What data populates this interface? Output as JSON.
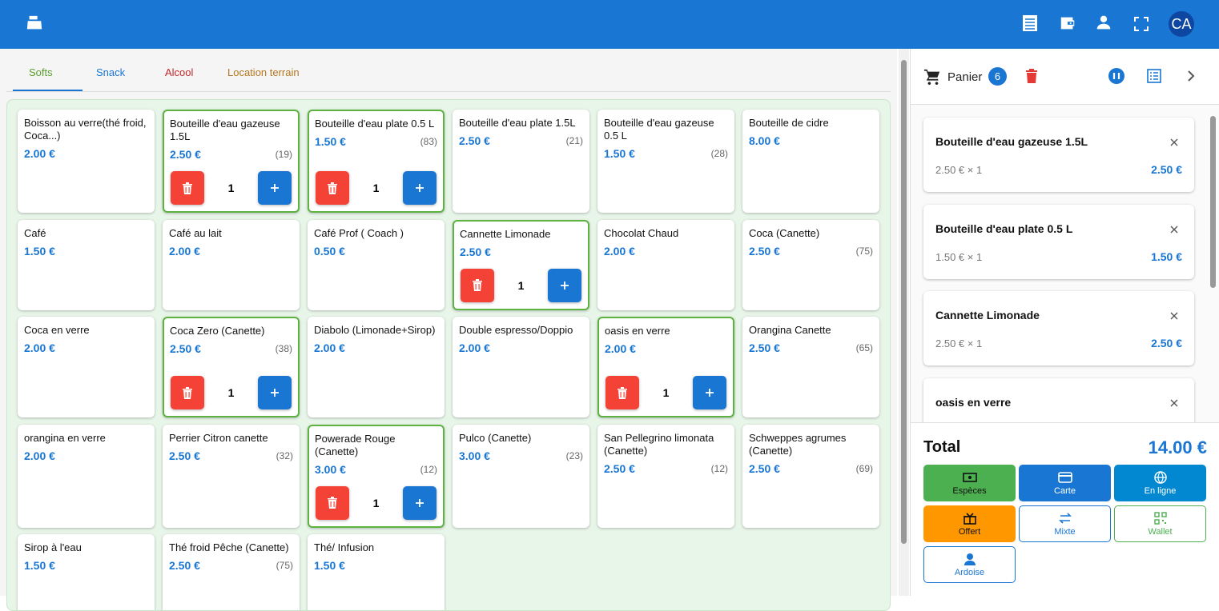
{
  "header": {
    "avatar": "CA"
  },
  "tabs": [
    "Softs",
    "Snack",
    "Alcool",
    "Location terrain"
  ],
  "products": [
    {
      "name": "Boisson au verre(thé froid, Coca...)",
      "price": "2.00 €"
    },
    {
      "name": "Bouteille d'eau gazeuse 1.5L",
      "price": "2.50 €",
      "stock": "(19)",
      "qty": 1
    },
    {
      "name": "Bouteille d'eau plate 0.5 L",
      "price": "1.50 €",
      "stock": "(83)",
      "qty": 1
    },
    {
      "name": "Bouteille d'eau plate 1.5L",
      "price": "2.50 €",
      "stock": "(21)"
    },
    {
      "name": "Bouteille d'eau gazeuse 0.5 L",
      "price": "1.50 €",
      "stock": "(28)"
    },
    {
      "name": "Bouteille de cidre",
      "price": "8.00 €"
    },
    {
      "name": "Café",
      "price": "1.50 €"
    },
    {
      "name": "Café au lait",
      "price": "2.00 €"
    },
    {
      "name": "Café Prof ( Coach )",
      "price": "0.50 €"
    },
    {
      "name": "Cannette Limonade",
      "price": "2.50 €",
      "qty": 1
    },
    {
      "name": "Chocolat Chaud",
      "price": "2.00 €"
    },
    {
      "name": "Coca (Canette)",
      "price": "2.50 €",
      "stock": "(75)"
    },
    {
      "name": "Coca en verre",
      "price": "2.00 €"
    },
    {
      "name": "Coca Zero (Canette)",
      "price": "2.50 €",
      "stock": "(38)",
      "qty": 1
    },
    {
      "name": "Diabolo (Limonade+Sirop)",
      "price": "2.00 €"
    },
    {
      "name": "Double espresso/Doppio",
      "price": "2.00 €"
    },
    {
      "name": "oasis en verre",
      "price": "2.00 €",
      "qty": 1
    },
    {
      "name": "Orangina Canette",
      "price": "2.50 €",
      "stock": "(65)"
    },
    {
      "name": "orangina en verre",
      "price": "2.00 €"
    },
    {
      "name": "Perrier Citron canette",
      "price": "2.50 €",
      "stock": "(32)"
    },
    {
      "name": "Powerade Rouge (Canette)",
      "price": "3.00 €",
      "stock": "(12)",
      "qty": 1
    },
    {
      "name": "Pulco (Canette)",
      "price": "3.00 €",
      "stock": "(23)"
    },
    {
      "name": "San Pellegrino limonata (Canette)",
      "price": "2.50 €",
      "stock": "(12)"
    },
    {
      "name": "Schweppes agrumes (Canette)",
      "price": "2.50 €",
      "stock": "(69)"
    },
    {
      "name": "Sirop à l'eau",
      "price": "1.50 €"
    },
    {
      "name": "Thé froid Pêche (Canette)",
      "price": "2.50 €",
      "stock": "(75)"
    },
    {
      "name": "Thé/ Infusion",
      "price": "1.50 €"
    }
  ],
  "cart": {
    "title": "Panier",
    "count": 6,
    "items": [
      {
        "name": "Bouteille d'eau gazeuse 1.5L",
        "unit": "2.50 € × 1",
        "total": "2.50 €"
      },
      {
        "name": "Bouteille d'eau plate 0.5 L",
        "unit": "1.50 € × 1",
        "total": "1.50 €"
      },
      {
        "name": "Cannette Limonade",
        "unit": "2.50 € × 1",
        "total": "2.50 €"
      },
      {
        "name": "oasis en verre"
      }
    ],
    "total_label": "Total",
    "total": "14.00 €",
    "payments": [
      "Espèces",
      "Carte",
      "En ligne",
      "Offert",
      "Mixte",
      "Wallet",
      "Ardoise"
    ]
  }
}
